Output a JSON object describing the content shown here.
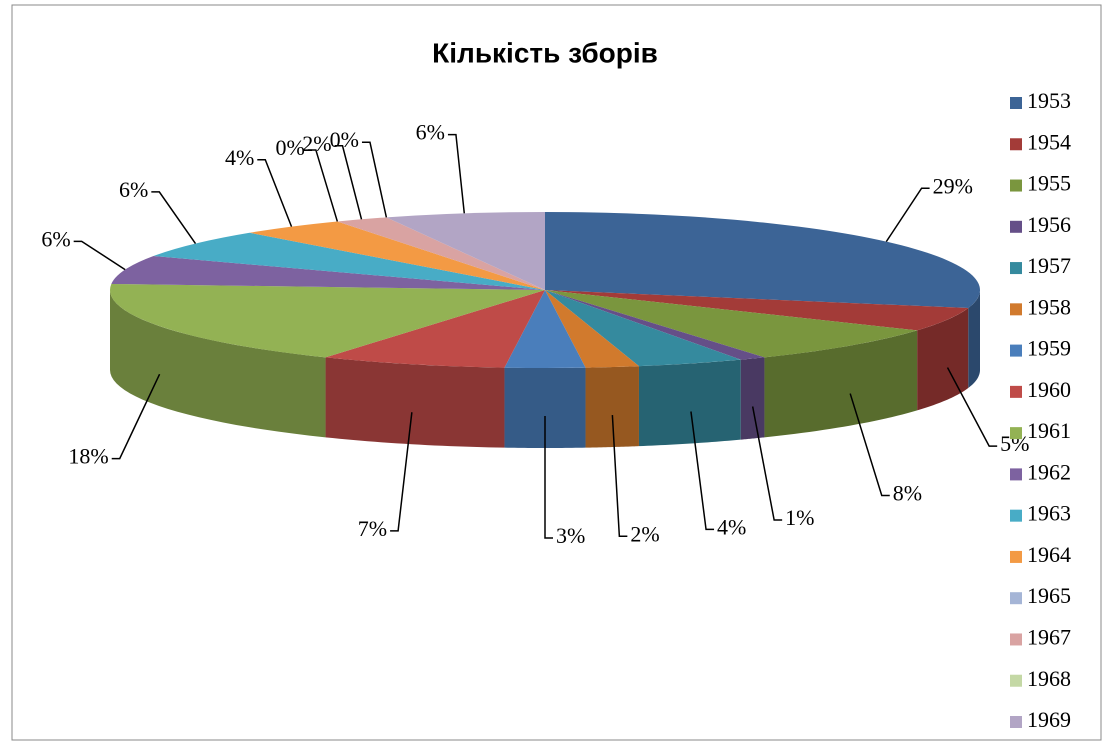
{
  "chart_data": {
    "type": "pie3d",
    "title": "Кількість зборів",
    "categories": [
      "1953",
      "1954",
      "1955",
      "1956",
      "1957",
      "1958",
      "1959",
      "1960",
      "1961",
      "1962",
      "1963",
      "1964",
      "1965",
      "1967",
      "1968",
      "1969"
    ],
    "values": [
      29,
      5,
      8,
      1,
      4,
      2,
      3,
      7,
      18,
      6,
      6,
      4,
      0,
      2,
      0,
      6
    ],
    "value_labels": [
      "29%",
      "5%",
      "8%",
      "1%",
      "4%",
      "2%",
      "3%",
      "7%",
      "18%",
      "6%",
      "6%",
      "4%",
      "0%",
      "2%",
      "0%",
      "6%"
    ],
    "colors": [
      "#3c6496",
      "#a33b38",
      "#7a963e",
      "#654f88",
      "#358a9e",
      "#d17a2d",
      "#4a7ebb",
      "#bf4b48",
      "#93b254",
      "#7d62a0",
      "#48acc6",
      "#f39a44",
      "#a5b5d6",
      "#d9a3a2",
      "#c4d8a5",
      "#b2a5c5"
    ],
    "legend": "right"
  }
}
